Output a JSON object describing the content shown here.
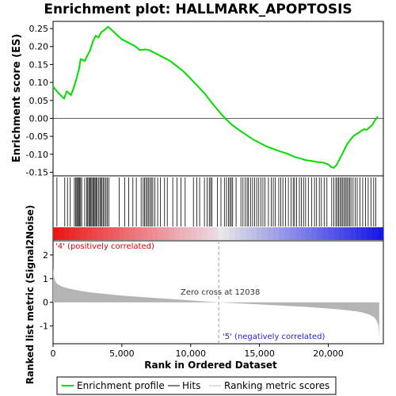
{
  "chart_data": {
    "type": "line",
    "title": "Enrichment plot: HALLMARK_APOPTOSIS",
    "es_panel": {
      "ylabel": "Enrichment score (ES)",
      "ylim": [
        -0.16,
        0.27
      ],
      "yticks": [
        "0.25",
        "0.20",
        "0.15",
        "0.10",
        "0.05",
        "0.00",
        "-0.05",
        "-0.10",
        "-0.15"
      ],
      "ytick_values": [
        0.25,
        0.2,
        0.15,
        0.1,
        0.05,
        0.0,
        -0.05,
        -0.1,
        -0.15
      ],
      "series": [
        {
          "name": "Enrichment profile",
          "color": "#00dd00",
          "x": [
            0,
            400,
            800,
            1000,
            1300,
            1500,
            1700,
            1900,
            2000,
            2300,
            2500,
            2700,
            2900,
            3100,
            3300,
            3500,
            3700,
            4000,
            4300,
            4700,
            5000,
            5500,
            6000,
            6300,
            6700,
            7000,
            7500,
            8000,
            8500,
            9000,
            9500,
            10000,
            10500,
            11000,
            11500,
            12000,
            12500,
            13000,
            13500,
            14000,
            14500,
            15000,
            15500,
            16000,
            16500,
            17000,
            17300,
            17600,
            18000,
            18300,
            18700,
            19000,
            19300,
            19600,
            20000,
            20200,
            20400,
            20600,
            20800,
            21000,
            21200,
            21400,
            21600,
            21800,
            22000,
            22200,
            22400,
            22600,
            22800,
            23000,
            23200,
            23400,
            23600
          ],
          "y": [
            0.088,
            0.07,
            0.055,
            0.075,
            0.065,
            0.085,
            0.11,
            0.14,
            0.165,
            0.16,
            0.175,
            0.19,
            0.215,
            0.23,
            0.225,
            0.24,
            0.245,
            0.255,
            0.245,
            0.23,
            0.22,
            0.21,
            0.2,
            0.19,
            0.192,
            0.19,
            0.18,
            0.17,
            0.16,
            0.145,
            0.13,
            0.11,
            0.09,
            0.07,
            0.045,
            0.022,
            0.0,
            -0.018,
            -0.032,
            -0.045,
            -0.058,
            -0.068,
            -0.078,
            -0.085,
            -0.092,
            -0.098,
            -0.103,
            -0.108,
            -0.112,
            -0.116,
            -0.118,
            -0.12,
            -0.122,
            -0.123,
            -0.128,
            -0.135,
            -0.138,
            -0.13,
            -0.115,
            -0.1,
            -0.085,
            -0.07,
            -0.06,
            -0.05,
            -0.045,
            -0.04,
            -0.035,
            -0.03,
            -0.032,
            -0.025,
            -0.018,
            -0.005,
            0.005
          ]
        }
      ]
    },
    "hits_panel": {
      "legend_name": "Hits",
      "gene_ranks": [
        280,
        850,
        1050,
        1250,
        1550,
        1650,
        1720,
        1790,
        1850,
        1920,
        2000,
        2080,
        2300,
        2450,
        2520,
        2600,
        2680,
        2750,
        2820,
        2900,
        2980,
        3050,
        3120,
        3200,
        3300,
        3400,
        3480,
        3560,
        3650,
        3750,
        3850,
        3950,
        4050,
        4800,
        5200,
        5500,
        5800,
        6050,
        6400,
        6550,
        6650,
        6750,
        6850,
        6950,
        7050,
        7150,
        7250,
        7400,
        7600,
        7800,
        8100,
        8300,
        8700,
        9000,
        9300,
        9600,
        10200,
        10450,
        10650,
        11000,
        11200,
        11350,
        11450,
        11550,
        11950,
        12200,
        12450,
        12600,
        12750,
        12850,
        12950,
        13050,
        13300,
        13650,
        13800,
        13950,
        14100,
        14200,
        14350,
        14500,
        14650,
        14800,
        14950,
        15100,
        15250,
        15400,
        15650,
        15850,
        16000,
        16150,
        16400,
        16550,
        16700,
        16900,
        17100,
        17300,
        17450,
        17550,
        17700,
        17900,
        18050,
        18200,
        18350,
        18550,
        18800,
        19000,
        19150,
        19350,
        19500,
        19700,
        19900,
        20250,
        20400,
        20550,
        20650,
        20750,
        20850,
        20950,
        21050,
        21150,
        21250,
        21350,
        21450,
        21550,
        21650,
        21800,
        21950,
        22100,
        22300,
        22500,
        22700,
        22900,
        23100,
        23300,
        23450
      ]
    },
    "rank_panel": {
      "ylabel": "Ranked list metric (Signal2Noise)",
      "xlabel": "Rank in Ordered Dataset",
      "ylim": [
        -1.75,
        2.6
      ],
      "yticks": [
        "2",
        "1",
        "0",
        "-1"
      ],
      "ytick_values": [
        2,
        1,
        0,
        -1
      ],
      "xlim": [
        0,
        24000
      ],
      "xticks": [
        "0",
        "5,000",
        "10,000",
        "15,000",
        "20,000"
      ],
      "xtick_values": [
        0,
        5000,
        10000,
        15000,
        20000
      ],
      "legend_name": "Ranking metric scores",
      "x": [
        0,
        50,
        150,
        300,
        600,
        1000,
        2000,
        3000,
        4000,
        5000,
        6000,
        7000,
        8000,
        9000,
        10000,
        11000,
        12038,
        13000,
        14000,
        15000,
        16000,
        17000,
        18000,
        19000,
        20000,
        21000,
        22000,
        22500,
        23000,
        23300,
        23500,
        23650,
        23700
      ],
      "y": [
        1.45,
        1.1,
        0.9,
        0.78,
        0.68,
        0.6,
        0.48,
        0.4,
        0.34,
        0.28,
        0.24,
        0.2,
        0.16,
        0.12,
        0.08,
        0.04,
        0.0,
        -0.03,
        -0.06,
        -0.09,
        -0.12,
        -0.15,
        -0.18,
        -0.22,
        -0.26,
        -0.31,
        -0.38,
        -0.43,
        -0.52,
        -0.62,
        -0.75,
        -1.0,
        -1.5
      ],
      "zero_cross_label": "Zero cross at 12038",
      "zero_cross_rank": 12038,
      "pos_label": "'4' (positively correlated)",
      "neg_label": "'5' (negatively correlated)"
    },
    "legend_placement": "bottom"
  }
}
